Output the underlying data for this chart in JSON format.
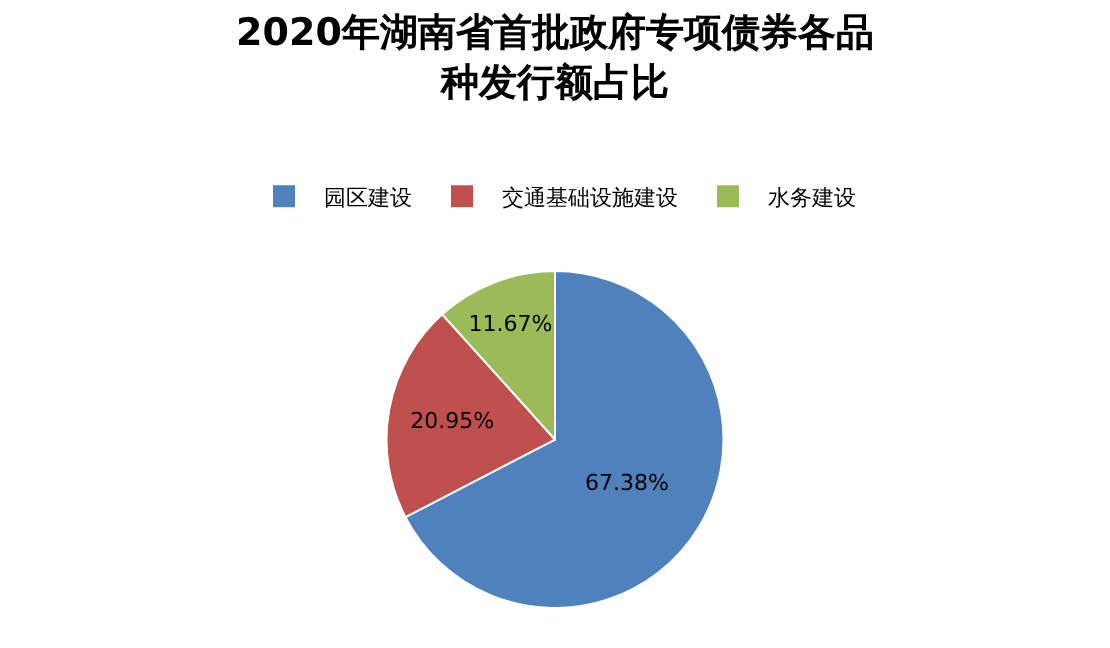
{
  "chart_data": {
    "type": "pie",
    "title": "2020年湖南省首批政府专项债券各品种发行额占比",
    "categories": [
      "园区建设",
      "交通基础设施建设",
      "水务建设"
    ],
    "values": [
      67.38,
      20.95,
      11.67
    ],
    "value_labels": [
      "67.38%",
      "20.95%",
      "11.67%"
    ],
    "colors": [
      "#4f81bd",
      "#c0504d",
      "#9bbb59"
    ],
    "legend": "top"
  }
}
